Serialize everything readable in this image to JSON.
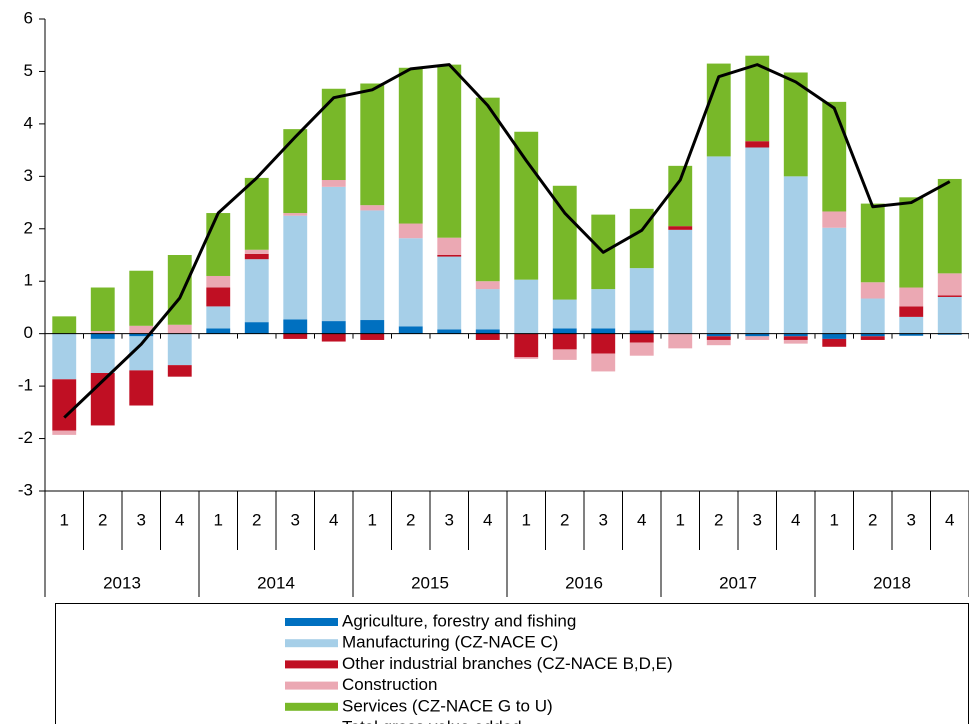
{
  "chart_data": {
    "type": "bar",
    "categories": [
      "1",
      "2",
      "3",
      "4",
      "1",
      "2",
      "3",
      "4",
      "1",
      "2",
      "3",
      "4",
      "1",
      "2",
      "3",
      "4",
      "1",
      "2",
      "3",
      "4",
      "1",
      "2",
      "3",
      "4"
    ],
    "year_groups": [
      "2013",
      "2014",
      "2015",
      "2016",
      "2017",
      "2018"
    ],
    "ylim": [
      -3,
      6
    ],
    "yticks": [
      -3,
      -2,
      -1,
      0,
      1,
      2,
      3,
      4,
      5,
      6
    ],
    "stacked": true,
    "series": [
      {
        "name": "Agriculture, forestry and fishing",
        "color": "#0070c0",
        "values": [
          0,
          -0.1,
          -0.05,
          0,
          0.1,
          0.22,
          0.27,
          0.24,
          0.26,
          0.14,
          0.08,
          0.08,
          0,
          0.1,
          0.1,
          0.06,
          0,
          -0.05,
          -0.05,
          -0.05,
          -0.1,
          -0.05,
          -0.04,
          -0.02
        ]
      },
      {
        "name": "Manufacturing (CZ-NACE C)",
        "color": "#a6cfe8",
        "values": [
          -0.87,
          -0.65,
          -0.65,
          -0.6,
          0.42,
          1.2,
          1.98,
          2.56,
          2.09,
          1.68,
          1.39,
          0.77,
          1.03,
          0.55,
          0.75,
          1.19,
          1.98,
          3.38,
          3.55,
          3.0,
          2.02,
          0.67,
          0.32,
          0.7
        ]
      },
      {
        "name": "Other industrial branches (CZ-NACE B,D,E)",
        "color": "#c00f23",
        "values": [
          -0.98,
          -1.0,
          -0.67,
          -0.22,
          0.36,
          0.1,
          -0.1,
          -0.15,
          -0.12,
          0,
          0.03,
          -0.12,
          -0.45,
          -0.3,
          -0.38,
          -0.17,
          0.07,
          -0.07,
          0.12,
          -0.07,
          -0.15,
          -0.07,
          0.2,
          0.03
        ]
      },
      {
        "name": "Construction",
        "color": "#eba8b3",
        "values": [
          -0.08,
          0.05,
          0.15,
          0.17,
          0.22,
          0.08,
          0.05,
          0.13,
          0.1,
          0.28,
          0.33,
          0.15,
          -0.03,
          -0.2,
          -0.34,
          -0.25,
          -0.28,
          -0.1,
          -0.07,
          -0.07,
          0.31,
          0.31,
          0.36,
          0.42
        ]
      },
      {
        "name": "Services (CZ-NACE G to U)",
        "color": "#78b829",
        "values": [
          0.33,
          0.83,
          1.05,
          1.33,
          1.2,
          1.37,
          1.6,
          1.74,
          2.32,
          2.97,
          3.3,
          3.5,
          2.82,
          2.17,
          1.42,
          1.13,
          1.15,
          1.77,
          1.63,
          1.98,
          2.09,
          1.5,
          1.72,
          1.8
        ]
      },
      {
        "name": "Total gross value added",
        "color": "#000000",
        "type": "line",
        "values": [
          -1.6,
          -0.9,
          -0.2,
          0.68,
          2.3,
          2.97,
          3.75,
          4.5,
          4.65,
          5.05,
          5.13,
          4.35,
          3.3,
          2.3,
          1.55,
          1.97,
          2.93,
          4.9,
          5.13,
          4.8,
          4.3,
          2.42,
          2.5,
          2.9
        ]
      }
    ]
  }
}
